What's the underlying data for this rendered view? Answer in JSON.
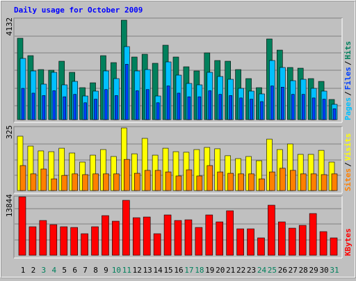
{
  "chart_data": [
    {
      "type": "bar",
      "title": "Daily usage for October 2009",
      "ylim": [
        0,
        4132
      ],
      "yticks": [
        4132
      ],
      "legend_separator": "/",
      "series": [
        {
          "name": "Hits",
          "color": "#00805c",
          "values": [
            3381,
            2658,
            2080,
            2052,
            2427,
            1965,
            1329,
            1531,
            2658,
            2369,
            4132,
            2601,
            2716,
            2341,
            3092,
            2601,
            2196,
            2023,
            2774,
            2456,
            2427,
            2080,
            1705,
            1329,
            3352,
            2889,
            2167,
            2138,
            1705,
            1589,
            838
          ]
        },
        {
          "name": "Files",
          "color": "#0040ff",
          "values": [
            1300,
            1100,
            1000,
            1200,
            950,
            1050,
            700,
            850,
            1250,
            1000,
            2300,
            1200,
            1250,
            700,
            1400,
            1100,
            950,
            950,
            1200,
            1050,
            1000,
            900,
            850,
            750,
            1400,
            1350,
            1050,
            1050,
            900,
            850,
            450
          ]
        },
        {
          "name": "Pages",
          "color": "#00c0ff",
          "values": [
            2543,
            2023,
            1474,
            1965,
            1445,
            1589,
            982,
            1185,
            2023,
            1705,
            3034,
            2023,
            2080,
            982,
            2398,
            1849,
            1503,
            1445,
            1965,
            1792,
            1676,
            1300,
            1185,
            1069,
            2456,
            2167,
            1618,
            1676,
            1300,
            1185,
            636
          ]
        }
      ]
    },
    {
      "type": "bar",
      "ylim": [
        0,
        325
      ],
      "yticks": [
        325
      ],
      "series": [
        {
          "name": "Visits",
          "color": "#ffff00",
          "values": [
            282,
            231,
            206,
            202,
            220,
            195,
            148,
            184,
            213,
            177,
            325,
            191,
            271,
            184,
            220,
            202,
            199,
            213,
            224,
            217,
            181,
            166,
            177,
            155,
            267,
            213,
            242,
            188,
            188,
            209,
            148
          ]
        },
        {
          "name": "Sites",
          "color": "#ff8000",
          "values": [
            130,
            87,
            112,
            61,
            79,
            87,
            83,
            87,
            87,
            87,
            162,
            90,
            105,
            105,
            97,
            76,
            108,
            76,
            130,
            97,
            90,
            87,
            87,
            61,
            97,
            116,
            105,
            87,
            87,
            83,
            87
          ]
        }
      ]
    },
    {
      "type": "bar",
      "ylim": [
        0,
        13844
      ],
      "yticks": [
        13844
      ],
      "categories": [
        "1",
        "2",
        "3",
        "4",
        "5",
        "6",
        "7",
        "8",
        "9",
        "10",
        "11",
        "12",
        "13",
        "14",
        "15",
        "16",
        "17",
        "18",
        "19",
        "20",
        "21",
        "22",
        "23",
        "24",
        "25",
        "26",
        "27",
        "28",
        "29",
        "30",
        "31"
      ],
      "category_colors": [
        "#000000",
        "#000000",
        "#00805c",
        "#00805c",
        "#000000",
        "#000000",
        "#000000",
        "#000000",
        "#000000",
        "#00805c",
        "#00805c",
        "#000000",
        "#000000",
        "#000000",
        "#000000",
        "#000000",
        "#00805c",
        "#00805c",
        "#000000",
        "#000000",
        "#000000",
        "#000000",
        "#000000",
        "#00805c",
        "#00805c",
        "#000000",
        "#000000",
        "#000000",
        "#000000",
        "#000000",
        "#00805c"
      ],
      "series": [
        {
          "name": "KBytes",
          "color": "#ff0000",
          "values": [
            13844,
            6757,
            8240,
            7251,
            6757,
            6592,
            5109,
            6757,
            9394,
            8076,
            13020,
            8900,
            9065,
            5109,
            9559,
            8240,
            8405,
            6592,
            9559,
            7911,
            10548,
            6263,
            6263,
            4120,
            11866,
            7911,
            6427,
            7087,
            9889,
            5604,
            4120
          ]
        }
      ]
    }
  ]
}
